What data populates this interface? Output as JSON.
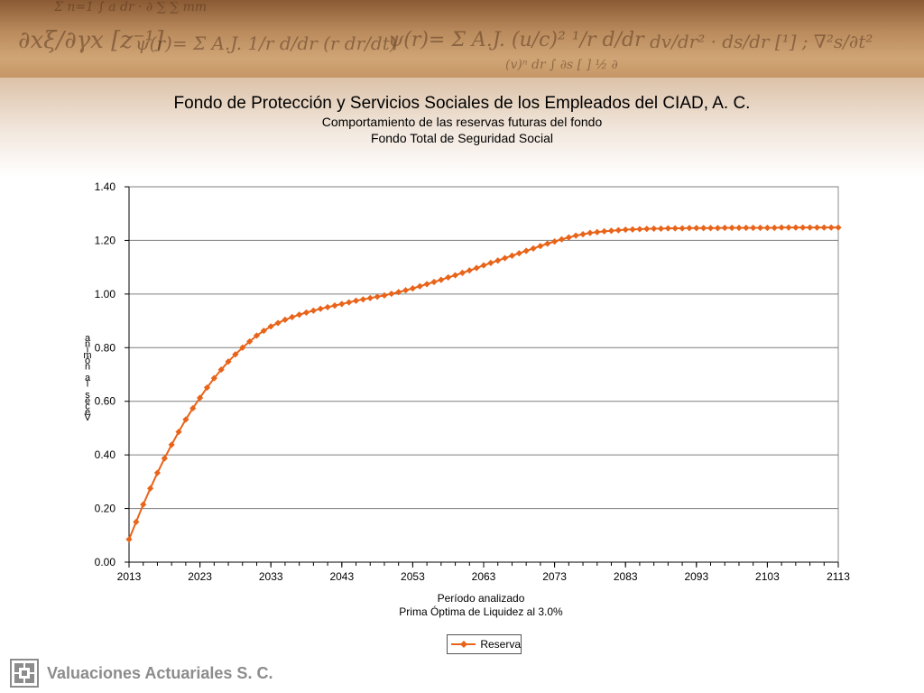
{
  "slide": {
    "title": "Fondo de Protección y Servicios Sociales de los Empleados del CIAD, A. C.",
    "subtitle1": "Comportamiento de las reservas futuras del fondo",
    "subtitle2": "Fondo Total de Seguridad Social",
    "footer_company": "Valuaciones Actuariales S. C.",
    "banner_color": "#b98a5c",
    "footer_logo_icon": "company-logo-icon"
  },
  "chart_data": {
    "type": "line",
    "title": "Fondo de Protección y Servicios Sociales de los Empleados del CIAD, A. C.",
    "xlabel": "Período analizado",
    "xlabel2": "Prima Óptima de Liquidez al 3.0%",
    "ylabel": "Veces la nómina",
    "xlim": [
      2013,
      2113
    ],
    "ylim": [
      0,
      1.4
    ],
    "x_ticks": [
      2013,
      2023,
      2033,
      2043,
      2053,
      2063,
      2073,
      2083,
      2093,
      2103,
      2113
    ],
    "y_ticks": [
      "0.00",
      "0.20",
      "0.40",
      "0.60",
      "0.80",
      "1.00",
      "1.20",
      "1.40"
    ],
    "y_tick_values": [
      0,
      0.2,
      0.4,
      0.6,
      0.8,
      1.0,
      1.2,
      1.4
    ],
    "grid": true,
    "legend": "bottom-center",
    "line_color": "#e8641a",
    "series": [
      {
        "name": "Reserva",
        "x": [
          2013,
          2014,
          2015,
          2016,
          2017,
          2018,
          2019,
          2020,
          2021,
          2022,
          2023,
          2024,
          2025,
          2026,
          2027,
          2028,
          2029,
          2030,
          2031,
          2032,
          2033,
          2034,
          2035,
          2036,
          2037,
          2038,
          2039,
          2040,
          2041,
          2042,
          2043,
          2044,
          2045,
          2046,
          2047,
          2048,
          2049,
          2050,
          2051,
          2052,
          2053,
          2054,
          2055,
          2056,
          2057,
          2058,
          2059,
          2060,
          2061,
          2062,
          2063,
          2064,
          2065,
          2066,
          2067,
          2068,
          2069,
          2070,
          2071,
          2072,
          2073,
          2074,
          2075,
          2076,
          2077,
          2078,
          2079,
          2080,
          2081,
          2082,
          2083,
          2084,
          2085,
          2086,
          2087,
          2088,
          2089,
          2090,
          2091,
          2092,
          2093,
          2094,
          2095,
          2096,
          2097,
          2098,
          2099,
          2100,
          2101,
          2102,
          2103,
          2104,
          2105,
          2106,
          2107,
          2108,
          2109,
          2110,
          2111,
          2112,
          2113
        ],
        "values": [
          0.085,
          0.15,
          0.215,
          0.275,
          0.333,
          0.387,
          0.438,
          0.486,
          0.532,
          0.574,
          0.613,
          0.651,
          0.686,
          0.718,
          0.748,
          0.775,
          0.8,
          0.823,
          0.845,
          0.863,
          0.879,
          0.892,
          0.904,
          0.914,
          0.923,
          0.931,
          0.938,
          0.945,
          0.951,
          0.957,
          0.963,
          0.969,
          0.975,
          0.98,
          0.985,
          0.99,
          0.995,
          1.001,
          1.007,
          1.014,
          1.021,
          1.029,
          1.037,
          1.045,
          1.053,
          1.062,
          1.07,
          1.079,
          1.088,
          1.097,
          1.107,
          1.116,
          1.125,
          1.134,
          1.143,
          1.152,
          1.161,
          1.17,
          1.179,
          1.188,
          1.196,
          1.204,
          1.211,
          1.218,
          1.223,
          1.228,
          1.231,
          1.234,
          1.236,
          1.238,
          1.24,
          1.241,
          1.242,
          1.243,
          1.244,
          1.244,
          1.245,
          1.245,
          1.245,
          1.246,
          1.246,
          1.246,
          1.246,
          1.246,
          1.247,
          1.247,
          1.247,
          1.247,
          1.247,
          1.247,
          1.247,
          1.247,
          1.248,
          1.248,
          1.248,
          1.248,
          1.248,
          1.248,
          1.248,
          1.248,
          1.248
        ]
      }
    ]
  }
}
